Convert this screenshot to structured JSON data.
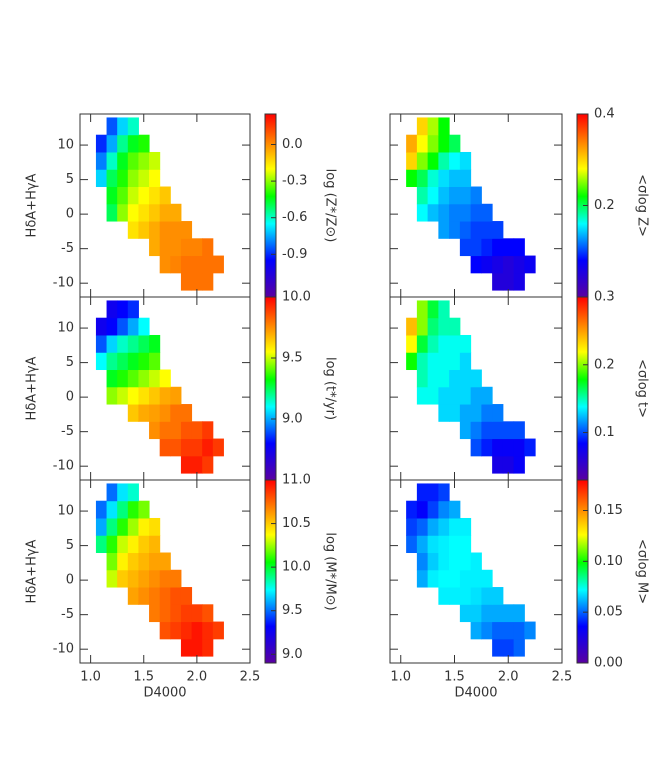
{
  "chart_data": [
    {
      "type": "heatmap",
      "xbins": [
        1.05,
        1.15,
        1.25,
        1.35,
        1.45,
        1.55,
        1.65,
        1.75,
        1.85,
        1.95,
        2.05,
        2.15,
        2.25
      ],
      "ybins": [
        -11,
        -8.5,
        -6,
        -3.5,
        -1,
        1.5,
        4,
        6.5,
        9,
        11.5,
        14
      ],
      "z": [
        [
          null,
          null,
          null,
          null,
          null,
          null,
          null,
          null,
          0.05,
          0.05,
          0.05,
          null
        ],
        [
          null,
          null,
          null,
          null,
          null,
          null,
          0.0,
          0.02,
          0.05,
          0.05,
          0.05,
          0.05
        ],
        [
          null,
          null,
          null,
          null,
          null,
          -0.05,
          0.0,
          0.0,
          0.02,
          0.02,
          0.05,
          null
        ],
        [
          null,
          null,
          null,
          -0.15,
          -0.1,
          -0.05,
          0.0,
          0.0,
          0.0,
          null,
          null,
          null
        ],
        [
          null,
          -0.5,
          -0.3,
          -0.2,
          -0.15,
          -0.1,
          -0.05,
          -0.05,
          null,
          null,
          null,
          null
        ],
        [
          null,
          -0.45,
          -0.35,
          -0.25,
          -0.2,
          -0.15,
          -0.1,
          null,
          null,
          null,
          null,
          null
        ],
        [
          -0.7,
          -0.5,
          -0.4,
          -0.3,
          -0.25,
          -0.2,
          null,
          null,
          null,
          null,
          null,
          null
        ],
        [
          -0.8,
          -0.6,
          -0.45,
          -0.35,
          -0.3,
          -0.25,
          null,
          null,
          null,
          null,
          null,
          null
        ],
        [
          -0.9,
          -0.75,
          -0.55,
          -0.45,
          -0.4,
          null,
          null,
          null,
          null,
          null,
          null,
          null
        ],
        [
          null,
          -0.85,
          -0.7,
          -0.6,
          null,
          null,
          null,
          null,
          null,
          null,
          null,
          null
        ]
      ],
      "xlim": [
        0.9,
        2.5
      ],
      "ylim": [
        -12,
        14.5
      ],
      "xticks": [
        {
          "value": 1,
          "label": "1.0"
        },
        1.5,
        {
          "value": 2,
          "label": "2.0"
        },
        2.5
      ],
      "yticks": [
        -10,
        -5,
        0,
        5,
        10
      ],
      "xtick_labels": false,
      "ytick_labels": true,
      "ylabel": "HδA+HγA",
      "zlim": [
        -1.25,
        0.25
      ],
      "zticks": [
        {
          "value": 0,
          "label": "0.0"
        },
        -0.3,
        -0.6,
        -0.9
      ],
      "zlabel": "log (Z*/Z⊙)"
    },
    {
      "type": "heatmap",
      "xbins": [
        1.05,
        1.15,
        1.25,
        1.35,
        1.45,
        1.55,
        1.65,
        1.75,
        1.85,
        1.95,
        2.05,
        2.15,
        2.25
      ],
      "ybins": [
        -11,
        -8.5,
        -6,
        -3.5,
        -1,
        1.5,
        4,
        6.5,
        9,
        11.5,
        14
      ],
      "z": [
        [
          null,
          null,
          null,
          null,
          null,
          null,
          null,
          null,
          0.05,
          0.05,
          0.06,
          null
        ],
        [
          null,
          null,
          null,
          null,
          null,
          null,
          0.08,
          0.07,
          0.06,
          0.05,
          0.06,
          0.07
        ],
        [
          null,
          null,
          null,
          null,
          null,
          0.1,
          0.1,
          0.09,
          0.08,
          0.08,
          0.08,
          null
        ],
        [
          null,
          null,
          null,
          0.13,
          0.12,
          0.11,
          0.1,
          0.1,
          0.1,
          null,
          null,
          null
        ],
        [
          null,
          0.16,
          0.14,
          0.13,
          0.12,
          0.12,
          0.11,
          0.11,
          null,
          null,
          null,
          null
        ],
        [
          null,
          0.18,
          0.16,
          0.14,
          0.13,
          0.13,
          0.12,
          null,
          null,
          null,
          null,
          null
        ],
        [
          0.22,
          0.2,
          0.17,
          0.15,
          0.14,
          0.14,
          null,
          null,
          null,
          null,
          null,
          null
        ],
        [
          0.3,
          0.25,
          0.22,
          0.18,
          0.16,
          0.15,
          null,
          null,
          null,
          null,
          null,
          null
        ],
        [
          0.32,
          0.28,
          0.25,
          0.22,
          0.2,
          null,
          null,
          null,
          null,
          null,
          null,
          null
        ],
        [
          null,
          0.3,
          0.26,
          0.22,
          null,
          null,
          null,
          null,
          null,
          null,
          null,
          null
        ]
      ],
      "xlim": [
        0.9,
        2.5
      ],
      "ylim": [
        -12,
        14.5
      ],
      "xticks": [
        {
          "value": 1,
          "label": "1.0"
        },
        1.5,
        {
          "value": 2,
          "label": "2.0"
        },
        2.5
      ],
      "yticks": [
        -10,
        -5,
        0,
        5,
        10
      ],
      "xtick_labels": false,
      "ytick_labels": false,
      "zlim": [
        0.0,
        0.4
      ],
      "zticks": [
        0.2,
        0.4
      ],
      "zlabel": "<σlog Z>"
    },
    {
      "type": "heatmap",
      "xbins": [
        1.05,
        1.15,
        1.25,
        1.35,
        1.45,
        1.55,
        1.65,
        1.75,
        1.85,
        1.95,
        2.05,
        2.15,
        2.25
      ],
      "ybins": [
        -11,
        -8.5,
        -6,
        -3.5,
        -1,
        1.5,
        4,
        6.5,
        9,
        11.5,
        14
      ],
      "z": [
        [
          null,
          null,
          null,
          null,
          null,
          null,
          null,
          null,
          9.95,
          9.95,
          9.9,
          null
        ],
        [
          null,
          null,
          null,
          null,
          null,
          null,
          9.85,
          9.85,
          9.9,
          9.9,
          9.95,
          9.9
        ],
        [
          null,
          null,
          null,
          null,
          null,
          9.75,
          9.8,
          9.8,
          9.85,
          9.85,
          9.9,
          null
        ],
        [
          null,
          null,
          null,
          9.65,
          9.7,
          9.72,
          9.75,
          9.8,
          9.8,
          null,
          null,
          null
        ],
        [
          null,
          9.45,
          9.5,
          9.55,
          9.6,
          9.65,
          9.7,
          9.72,
          null,
          null,
          null,
          null
        ],
        [
          null,
          9.3,
          9.35,
          9.4,
          9.45,
          9.5,
          9.55,
          null,
          null,
          null,
          null,
          null
        ],
        [
          9.1,
          9.2,
          9.25,
          9.3,
          9.35,
          9.4,
          null,
          null,
          null,
          null,
          null,
          null
        ],
        [
          8.9,
          9.05,
          9.15,
          9.2,
          9.25,
          9.3,
          null,
          null,
          null,
          null,
          null,
          null
        ],
        [
          8.75,
          8.8,
          8.9,
          9.0,
          9.1,
          null,
          null,
          null,
          null,
          null,
          null,
          null
        ],
        [
          null,
          8.75,
          8.8,
          8.85,
          null,
          null,
          null,
          null,
          null,
          null,
          null,
          null
        ]
      ],
      "xlim": [
        0.9,
        2.5
      ],
      "ylim": [
        -12,
        14.5
      ],
      "xticks": [
        {
          "value": 1,
          "label": "1.0"
        },
        1.5,
        {
          "value": 2,
          "label": "2.0"
        },
        2.5
      ],
      "yticks": [
        -10,
        -5,
        0,
        5,
        10
      ],
      "xtick_labels": false,
      "ytick_labels": true,
      "ylabel": "HδA+HγA",
      "zlim": [
        8.5,
        10.0
      ],
      "zticks": [
        {
          "value": 9,
          "label": "9.0"
        },
        9.5,
        {
          "value": 10,
          "label": "10.0"
        }
      ],
      "zlabel": "log (t*/yr)"
    },
    {
      "type": "heatmap",
      "xbins": [
        1.05,
        1.15,
        1.25,
        1.35,
        1.45,
        1.55,
        1.65,
        1.75,
        1.85,
        1.95,
        2.05,
        2.15,
        2.25
      ],
      "ybins": [
        -11,
        -8.5,
        -6,
        -3.5,
        -1,
        1.5,
        4,
        6.5,
        9,
        11.5,
        14
      ],
      "z": [
        [
          null,
          null,
          null,
          null,
          null,
          null,
          null,
          null,
          0.07,
          0.07,
          0.08,
          null
        ],
        [
          null,
          null,
          null,
          null,
          null,
          null,
          0.1,
          0.09,
          0.08,
          0.08,
          0.08,
          0.09
        ],
        [
          null,
          null,
          null,
          null,
          null,
          0.12,
          0.11,
          0.1,
          0.1,
          0.1,
          0.1,
          null
        ],
        [
          null,
          null,
          null,
          0.13,
          0.13,
          0.12,
          0.12,
          0.11,
          0.11,
          null,
          null,
          null
        ],
        [
          null,
          0.14,
          0.14,
          0.13,
          0.13,
          0.13,
          0.12,
          0.12,
          null,
          null,
          null,
          null
        ],
        [
          null,
          0.15,
          0.14,
          0.14,
          0.13,
          0.13,
          0.13,
          null,
          null,
          null,
          null,
          null
        ],
        [
          0.18,
          0.15,
          0.14,
          0.14,
          0.14,
          0.13,
          null,
          null,
          null,
          null,
          null,
          null
        ],
        [
          0.22,
          0.17,
          0.15,
          0.14,
          0.14,
          0.14,
          null,
          null,
          null,
          null,
          null,
          null
        ],
        [
          0.24,
          0.2,
          0.16,
          0.15,
          0.15,
          null,
          null,
          null,
          null,
          null,
          null,
          null
        ],
        [
          null,
          0.2,
          0.17,
          0.15,
          null,
          null,
          null,
          null,
          null,
          null,
          null,
          null
        ]
      ],
      "xlim": [
        0.9,
        2.5
      ],
      "ylim": [
        -12,
        14.5
      ],
      "xticks": [
        {
          "value": 1,
          "label": "1.0"
        },
        1.5,
        {
          "value": 2,
          "label": "2.0"
        },
        2.5
      ],
      "yticks": [
        -10,
        -5,
        0,
        5,
        10
      ],
      "xtick_labels": false,
      "ytick_labels": false,
      "zlim": [
        0.03,
        0.3
      ],
      "zticks": [
        0.1,
        0.2,
        0.3
      ],
      "zlabel": "<σlog t>"
    },
    {
      "type": "heatmap",
      "xbins": [
        1.05,
        1.15,
        1.25,
        1.35,
        1.45,
        1.55,
        1.65,
        1.75,
        1.85,
        1.95,
        2.05,
        2.15,
        2.25
      ],
      "ybins": [
        -11,
        -8.5,
        -6,
        -3.5,
        -1,
        1.5,
        4,
        6.5,
        9,
        11.5,
        14
      ],
      "z": [
        [
          null,
          null,
          null,
          null,
          null,
          null,
          null,
          null,
          10.95,
          10.95,
          10.9,
          null
        ],
        [
          null,
          null,
          null,
          null,
          null,
          null,
          10.8,
          10.85,
          10.9,
          10.95,
          10.9,
          10.85
        ],
        [
          null,
          null,
          null,
          null,
          null,
          10.7,
          10.75,
          10.8,
          10.85,
          10.85,
          10.8,
          null
        ],
        [
          null,
          null,
          null,
          10.6,
          10.65,
          10.7,
          10.75,
          10.8,
          10.8,
          null,
          null,
          null
        ],
        [
          null,
          10.3,
          10.5,
          10.55,
          10.6,
          10.65,
          10.7,
          10.7,
          null,
          null,
          null,
          null
        ],
        [
          null,
          10.2,
          10.4,
          10.5,
          10.55,
          10.6,
          10.6,
          null,
          null,
          null,
          null,
          null
        ],
        [
          9.9,
          10.1,
          10.3,
          10.4,
          10.5,
          10.55,
          null,
          null,
          null,
          null,
          null,
          null
        ],
        [
          9.6,
          9.9,
          10.1,
          10.25,
          10.4,
          10.45,
          null,
          null,
          null,
          null,
          null,
          null
        ],
        [
          9.5,
          9.7,
          9.9,
          10.1,
          10.2,
          null,
          null,
          null,
          null,
          null,
          null,
          null
        ],
        [
          null,
          9.5,
          9.7,
          9.8,
          null,
          null,
          null,
          null,
          null,
          null,
          null,
          null
        ]
      ],
      "xlim": [
        0.9,
        2.5
      ],
      "ylim": [
        -12,
        14.5
      ],
      "xticks": [
        {
          "value": 1,
          "label": "1.0"
        },
        1.5,
        {
          "value": 2,
          "label": "2.0"
        },
        2.5
      ],
      "yticks": [
        -10,
        -5,
        0,
        5,
        10
      ],
      "xtick_labels": true,
      "ytick_labels": true,
      "ylabel": "HδA+HγA",
      "xlabel": "D4000",
      "zlim": [
        8.9,
        11.0
      ],
      "zticks": [
        {
          "value": 9,
          "label": "9.0"
        },
        9.5,
        {
          "value": 10,
          "label": "10.0"
        },
        10.5,
        {
          "value": 11,
          "label": "11.0"
        }
      ],
      "zlabel": "log (M*/M⊙)"
    },
    {
      "type": "heatmap",
      "xbins": [
        1.05,
        1.15,
        1.25,
        1.35,
        1.45,
        1.55,
        1.65,
        1.75,
        1.85,
        1.95,
        2.05,
        2.15,
        2.25
      ],
      "ybins": [
        -11,
        -8.5,
        -6,
        -3.5,
        -1,
        1.5,
        4,
        6.5,
        9,
        11.5,
        14
      ],
      "z": [
        [
          null,
          null,
          null,
          null,
          null,
          null,
          null,
          null,
          0.045,
          0.045,
          0.05,
          null
        ],
        [
          null,
          null,
          null,
          null,
          null,
          null,
          0.06,
          0.055,
          0.05,
          0.05,
          0.05,
          0.055
        ],
        [
          null,
          null,
          null,
          null,
          null,
          0.065,
          0.065,
          0.06,
          0.06,
          0.06,
          0.06,
          null
        ],
        [
          null,
          null,
          null,
          0.07,
          0.07,
          0.07,
          0.068,
          0.065,
          0.065,
          null,
          null,
          null
        ],
        [
          null,
          0.06,
          0.07,
          0.072,
          0.072,
          0.07,
          0.07,
          0.07,
          null,
          null,
          null,
          null
        ],
        [
          null,
          0.055,
          0.065,
          0.07,
          0.072,
          0.072,
          0.07,
          null,
          null,
          null,
          null,
          null
        ],
        [
          0.05,
          0.06,
          0.068,
          0.07,
          0.072,
          0.072,
          null,
          null,
          null,
          null,
          null,
          null
        ],
        [
          0.045,
          0.05,
          0.06,
          0.065,
          0.07,
          0.07,
          null,
          null,
          null,
          null,
          null,
          null
        ],
        [
          0.04,
          0.035,
          0.045,
          0.055,
          0.06,
          null,
          null,
          null,
          null,
          null,
          null,
          null
        ],
        [
          null,
          0.04,
          0.04,
          0.045,
          null,
          null,
          null,
          null,
          null,
          null,
          null,
          null
        ]
      ],
      "xlim": [
        0.9,
        2.5
      ],
      "ylim": [
        -12,
        14.5
      ],
      "xticks": [
        {
          "value": 1,
          "label": "1.0"
        },
        1.5,
        {
          "value": 2,
          "label": "2.0"
        },
        2.5
      ],
      "yticks": [
        -10,
        -5,
        0,
        5,
        10
      ],
      "xtick_labels": true,
      "ytick_labels": false,
      "xlabel": "D4000",
      "zlim": [
        0.0,
        0.18
      ],
      "zticks": [
        {
          "value": 0,
          "label": "0.00"
        },
        0.05,
        {
          "value": 0.1,
          "label": "0.10"
        },
        0.15
      ],
      "zlabel": "<σlog M>"
    }
  ]
}
